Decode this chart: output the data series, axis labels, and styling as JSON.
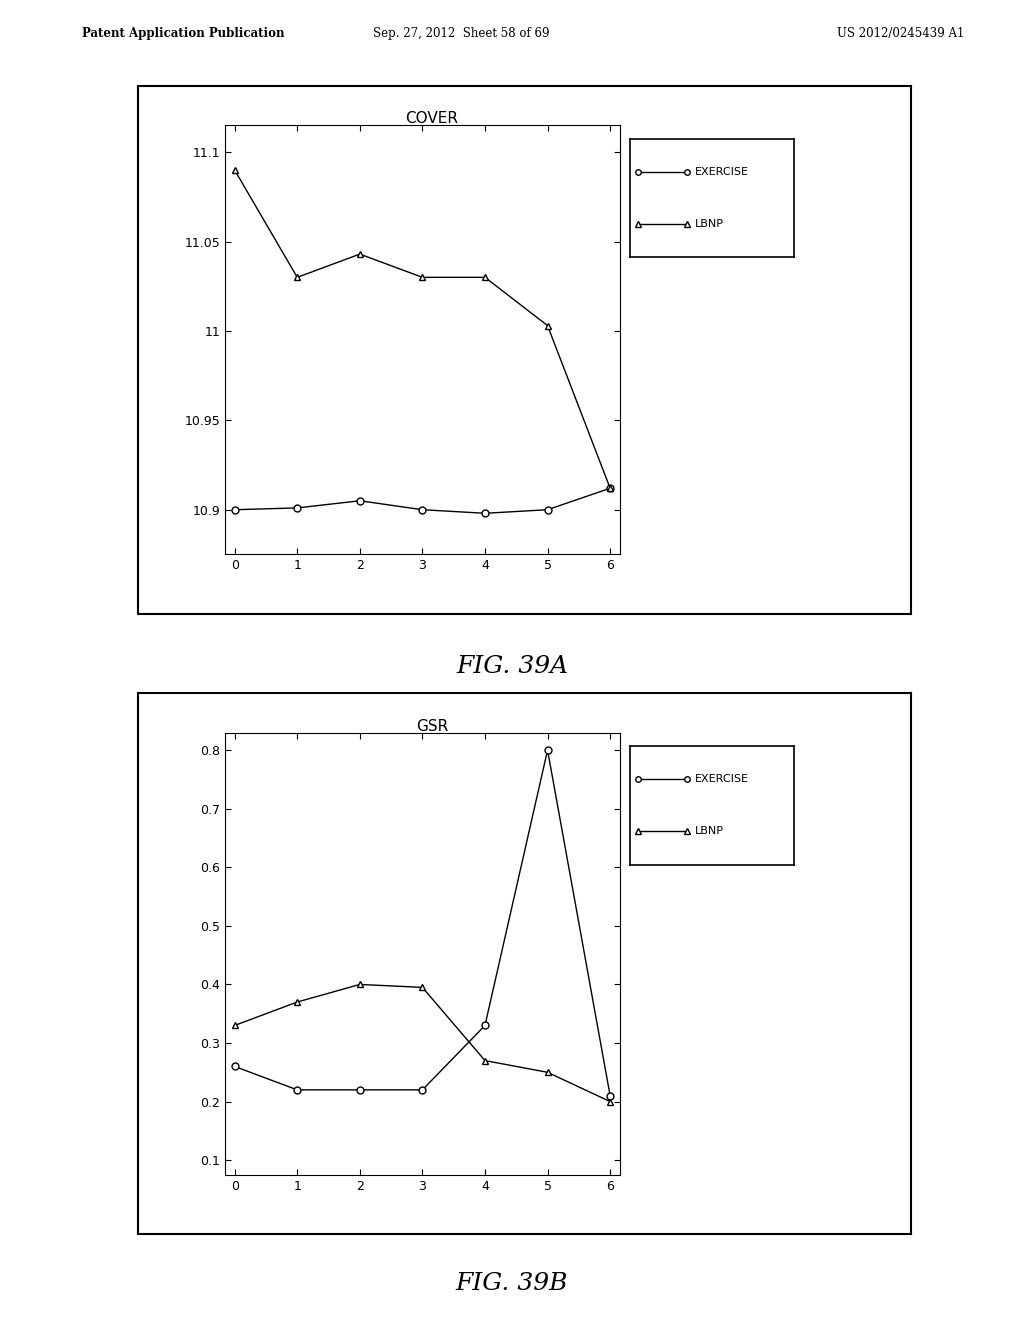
{
  "chart1": {
    "title": "COVER",
    "x": [
      0,
      1,
      2,
      3,
      4,
      5,
      6
    ],
    "exercise_y": [
      10.9,
      10.901,
      10.905,
      10.9,
      10.898,
      10.9,
      10.912
    ],
    "lbnp_y": [
      11.09,
      11.03,
      11.043,
      11.03,
      11.03,
      11.003,
      10.912
    ],
    "ylim": [
      10.875,
      11.115
    ],
    "yticks": [
      10.9,
      10.95,
      11.0,
      11.05,
      11.1
    ],
    "ytick_labels": [
      "10.9",
      "10.95",
      "11",
      "11.05",
      "11.1"
    ],
    "xticks": [
      0,
      1,
      2,
      3,
      4,
      5,
      6
    ],
    "xlim": [
      -0.15,
      6.15
    ]
  },
  "chart2": {
    "title": "GSR",
    "x": [
      0,
      1,
      2,
      3,
      4,
      5,
      6
    ],
    "exercise_y": [
      0.26,
      0.22,
      0.22,
      0.22,
      0.33,
      0.8,
      0.21
    ],
    "lbnp_y": [
      0.33,
      0.37,
      0.4,
      0.395,
      0.27,
      0.25,
      0.2
    ],
    "ylim": [
      0.075,
      0.83
    ],
    "yticks": [
      0.1,
      0.2,
      0.3,
      0.4,
      0.5,
      0.6,
      0.7,
      0.8
    ],
    "ytick_labels": [
      "0.1",
      "0.2",
      "0.3",
      "0.4",
      "0.5",
      "0.6",
      "0.7",
      "0.8"
    ],
    "xticks": [
      0,
      1,
      2,
      3,
      4,
      5,
      6
    ],
    "xlim": [
      -0.15,
      6.15
    ]
  },
  "fig39a_label": "FIG. 39A",
  "fig39b_label": "FIG. 39B",
  "legend_exercise": "EXERCISE",
  "legend_lbnp": "LBNP",
  "header_left": "Patent Application Publication",
  "header_mid": "Sep. 27, 2012  Sheet 58 of 69",
  "header_right": "US 2012/0245439 A1",
  "bg_color": "#ffffff",
  "line_color": "#000000",
  "marker_exercise": "o",
  "marker_lbnp": "^",
  "marker_size": 5,
  "line_width": 1.0
}
